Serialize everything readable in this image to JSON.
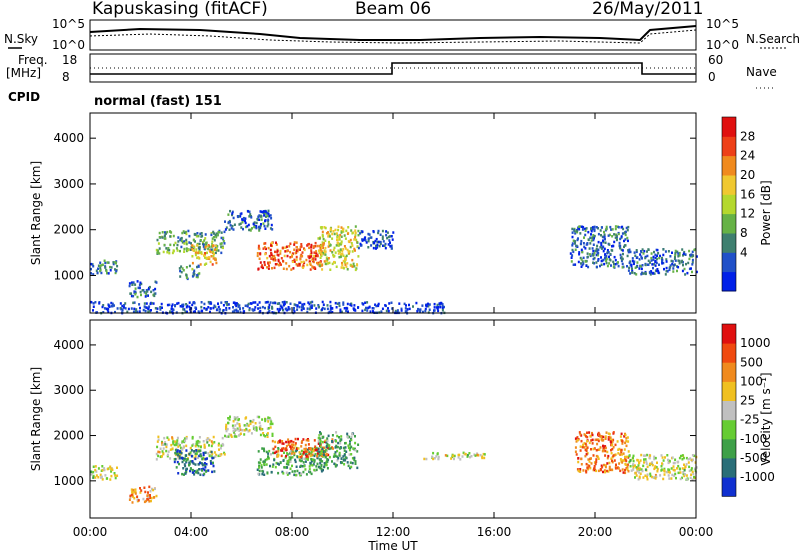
{
  "header": {
    "station": "Kapuskasing (fitACF)",
    "beam": "Beam 06",
    "date": "26/May/2011"
  },
  "top_panels": {
    "nsky_label": "N.Sky",
    "nsky_ticks": [
      "10^5",
      "10^0"
    ],
    "nsearch_label": "N.Search",
    "nsearch_ticks": [
      "10^5",
      "10^0"
    ],
    "freq_label_1": "Freq.",
    "freq_label_2": "[MHz]",
    "freq_ticks": [
      "18",
      "8"
    ],
    "nave_label": "Nave",
    "nave_ticks": [
      "60",
      "0"
    ],
    "cpid_label": "CPID",
    "cpid_value": "normal (fast) 151"
  },
  "chart_data": [
    {
      "type": "heatmap",
      "name": "power",
      "ylabel": "Slant Range [km]",
      "xlabel": "",
      "xlim": [
        0,
        24
      ],
      "ylim": [
        180,
        4550
      ],
      "y_ticks": [
        "4000",
        "3000",
        "2000",
        "1000"
      ],
      "colorbar": {
        "label": "Power [dB]",
        "tick_labels": [
          "28",
          "24",
          "20",
          "16",
          "12",
          "8",
          "4"
        ],
        "colors": [
          "#0020e8",
          "#2050c8",
          "#3e7f6f",
          "#66b246",
          "#b4d82e",
          "#f0c830",
          "#f08a1e",
          "#ee4018",
          "#e01010"
        ]
      },
      "echo_regions": [
        {
          "t0": 0.0,
          "t1": 1.1,
          "r0": 1050,
          "r1": 1350,
          "level": 0.25
        },
        {
          "t0": 1.5,
          "t1": 2.6,
          "r0": 550,
          "r1": 900,
          "level": 0.2
        },
        {
          "t0": 2.6,
          "t1": 5.3,
          "r0": 1500,
          "r1": 2000,
          "level": 0.35
        },
        {
          "t0": 4.0,
          "t1": 5.0,
          "r0": 1250,
          "r1": 1700,
          "level": 0.65
        },
        {
          "t0": 3.5,
          "t1": 4.3,
          "r0": 950,
          "r1": 1250,
          "level": 0.3
        },
        {
          "t0": 6.6,
          "t1": 9.2,
          "r0": 1150,
          "r1": 1750,
          "level": 0.8
        },
        {
          "t0": 5.3,
          "t1": 7.2,
          "r0": 2000,
          "r1": 2450,
          "level": 0.2
        },
        {
          "t0": 9.0,
          "t1": 10.6,
          "r0": 1150,
          "r1": 2100,
          "level": 0.55
        },
        {
          "t0": 10.6,
          "t1": 12.0,
          "r0": 1600,
          "r1": 2000,
          "level": 0.15
        },
        {
          "t0": 19.0,
          "t1": 21.3,
          "r0": 1200,
          "r1": 2100,
          "level": 0.2
        },
        {
          "t0": 21.3,
          "t1": 24.0,
          "r0": 1050,
          "r1": 1600,
          "level": 0.2
        },
        {
          "t0": 0.0,
          "t1": 14.0,
          "r0": 200,
          "r1": 450,
          "level": 0.1
        }
      ]
    },
    {
      "type": "heatmap",
      "name": "velocity",
      "ylabel": "Slant Range [km]",
      "xlabel": "Time UT",
      "xlim": [
        0,
        24
      ],
      "ylim": [
        180,
        4550
      ],
      "x_ticks": [
        "00:00",
        "04:00",
        "08:00",
        "12:00",
        "16:00",
        "20:00",
        "00:00"
      ],
      "y_ticks": [
        "4000",
        "3000",
        "2000",
        "1000"
      ],
      "colorbar": {
        "label": "Velocity [m s⁻¹]",
        "tick_labels": [
          "1000",
          "500",
          "100",
          "25",
          "-25",
          "-100",
          "-500",
          "-1000"
        ],
        "colors": [
          "#1030d0",
          "#2a6e78",
          "#3ea048",
          "#66cc33",
          "#c0c0c0",
          "#f0c020",
          "#f08a1e",
          "#f04a10",
          "#e01010"
        ]
      },
      "echo_regions": [
        {
          "t0": 0.0,
          "t1": 1.1,
          "r0": 1050,
          "r1": 1350,
          "level": 0.5
        },
        {
          "t0": 1.5,
          "t1": 2.6,
          "r0": 550,
          "r1": 900,
          "level": 0.7
        },
        {
          "t0": 2.6,
          "t1": 5.3,
          "r0": 1500,
          "r1": 2000,
          "level": 0.5
        },
        {
          "t0": 3.3,
          "t1": 4.9,
          "r0": 1150,
          "r1": 1700,
          "level": 0.15
        },
        {
          "t0": 5.3,
          "t1": 7.2,
          "r0": 2000,
          "r1": 2450,
          "level": 0.5
        },
        {
          "t0": 6.6,
          "t1": 9.2,
          "r0": 1150,
          "r1": 1750,
          "level": 0.3
        },
        {
          "t0": 7.2,
          "t1": 9.6,
          "r0": 1550,
          "r1": 1950,
          "level": 0.8
        },
        {
          "t0": 9.0,
          "t1": 10.6,
          "r0": 1300,
          "r1": 2100,
          "level": 0.3
        },
        {
          "t0": 13.2,
          "t1": 15.6,
          "r0": 1500,
          "r1": 1650,
          "level": 0.5
        },
        {
          "t0": 19.2,
          "t1": 21.3,
          "r0": 1200,
          "r1": 2100,
          "level": 0.75
        },
        {
          "t0": 21.3,
          "t1": 24.0,
          "r0": 1050,
          "r1": 1600,
          "level": 0.5
        }
      ]
    }
  ]
}
